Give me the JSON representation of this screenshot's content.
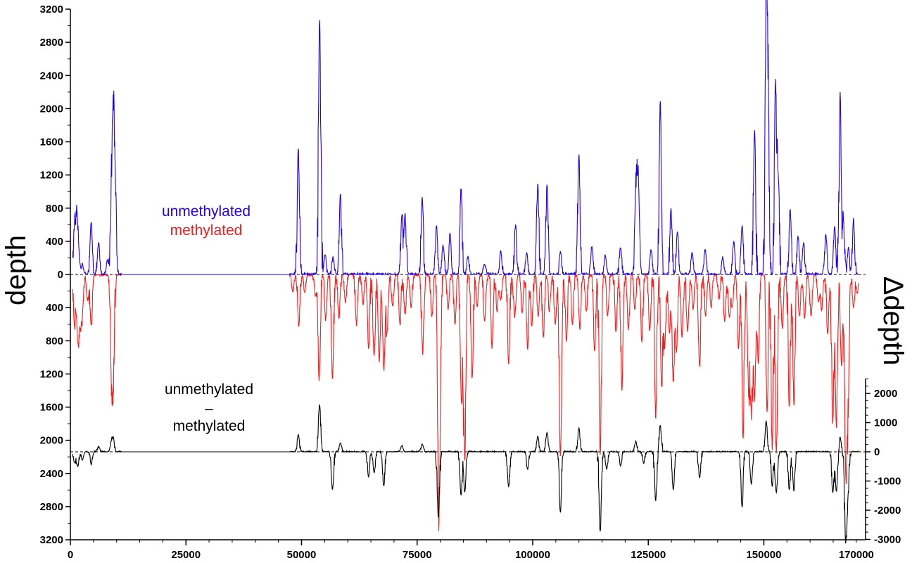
{
  "chart_data": {
    "type": "line",
    "x": {
      "ticks": [
        0,
        25000,
        50000,
        75000,
        100000,
        125000,
        150000,
        170000
      ],
      "tick_labels": [
        "0",
        "25000",
        "50000",
        "75000",
        "100000",
        "125000",
        "150000",
        "170000"
      ],
      "range": [
        0,
        172000
      ]
    },
    "left_axis": {
      "label": "depth",
      "tick_labels": [
        "3200",
        "2800",
        "2400",
        "2000",
        "1600",
        "1200",
        "800",
        "400",
        "0",
        "400",
        "800",
        "1200",
        "1600",
        "2000",
        "2400",
        "2800",
        "3200"
      ],
      "range": [
        -3200,
        3200
      ]
    },
    "right_axis": {
      "label": "Δdepth",
      "tick_values": [
        2000,
        1000,
        0,
        -1000,
        -2000,
        -3000
      ],
      "tick_labels": [
        "2000",
        "1000",
        "0",
        "-1000",
        "-2000",
        "-3000"
      ],
      "range": [
        -3000,
        2500
      ]
    },
    "legend_top": [
      "unmethylated",
      "methylated"
    ],
    "legend_bottom": [
      "unmethylated",
      "–",
      "methylated"
    ],
    "colors": {
      "unmethylated": "#2200ee",
      "methylated": "#ff1a1a",
      "difference": "#000000"
    },
    "series": [
      {
        "name": "unmethylated",
        "baseline": 0,
        "noise": 30,
        "peaks": [
          [
            900,
            550
          ],
          [
            1400,
            640
          ],
          [
            1800,
            200
          ],
          [
            2600,
            120
          ],
          [
            4500,
            630
          ],
          [
            6100,
            380
          ],
          [
            8000,
            170
          ],
          [
            8900,
            880
          ],
          [
            9300,
            1690
          ],
          [
            9700,
            900
          ],
          [
            49300,
            1520
          ],
          [
            53900,
            3080
          ],
          [
            55100,
            240
          ],
          [
            56800,
            200
          ],
          [
            58400,
            960
          ],
          [
            71700,
            700
          ],
          [
            72400,
            720
          ],
          [
            76100,
            930
          ],
          [
            79200,
            590
          ],
          [
            80600,
            360
          ],
          [
            82100,
            500
          ],
          [
            84500,
            1040
          ],
          [
            86000,
            210
          ],
          [
            89600,
            120
          ],
          [
            93100,
            280
          ],
          [
            96300,
            600
          ],
          [
            98700,
            260
          ],
          [
            101100,
            1100
          ],
          [
            103100,
            1080
          ],
          [
            106000,
            280
          ],
          [
            110000,
            1450
          ],
          [
            112800,
            330
          ],
          [
            115700,
            230
          ],
          [
            119000,
            330
          ],
          [
            122300,
            940
          ],
          [
            122800,
            1150
          ],
          [
            125600,
            300
          ],
          [
            127600,
            2080
          ],
          [
            129900,
            800
          ],
          [
            131300,
            520
          ],
          [
            134500,
            260
          ],
          [
            137300,
            300
          ],
          [
            141100,
            200
          ],
          [
            143500,
            390
          ],
          [
            145300,
            580
          ],
          [
            148000,
            1740
          ],
          [
            150500,
            3180
          ],
          [
            150900,
            1900
          ],
          [
            152500,
            2300
          ],
          [
            153100,
            1200
          ],
          [
            155700,
            780
          ],
          [
            157400,
            460
          ],
          [
            158600,
            380
          ],
          [
            163400,
            480
          ],
          [
            165300,
            580
          ],
          [
            166500,
            2140
          ],
          [
            167200,
            650
          ],
          [
            168300,
            320
          ],
          [
            169400,
            660
          ]
        ]
      },
      {
        "name": "methylated",
        "baseline": 0,
        "noise": 30,
        "peaks": [
          [
            900,
            620
          ],
          [
            1600,
            760
          ],
          [
            2100,
            540
          ],
          [
            2600,
            440
          ],
          [
            3700,
            300
          ],
          [
            4500,
            620
          ],
          [
            8900,
            1100
          ],
          [
            9300,
            1100
          ],
          [
            48100,
            200
          ],
          [
            49400,
            620
          ],
          [
            50700,
            220
          ],
          [
            53000,
            260
          ],
          [
            53800,
            1270
          ],
          [
            55200,
            550
          ],
          [
            56700,
            1270
          ],
          [
            58100,
            530
          ],
          [
            59500,
            330
          ],
          [
            61900,
            600
          ],
          [
            63300,
            350
          ],
          [
            64500,
            900
          ],
          [
            65700,
            980
          ],
          [
            66800,
            1040
          ],
          [
            67800,
            1140
          ],
          [
            68500,
            690
          ],
          [
            69700,
            380
          ],
          [
            71300,
            600
          ],
          [
            72400,
            480
          ],
          [
            73700,
            400
          ],
          [
            76200,
            960
          ],
          [
            78200,
            500
          ],
          [
            79600,
            2160
          ],
          [
            79900,
            1400
          ],
          [
            81700,
            420
          ],
          [
            83200,
            600
          ],
          [
            84600,
            1530
          ],
          [
            85300,
            2240
          ],
          [
            86900,
            1250
          ],
          [
            88000,
            380
          ],
          [
            89600,
            560
          ],
          [
            91200,
            900
          ],
          [
            92300,
            450
          ],
          [
            93100,
            300
          ],
          [
            94800,
            1080
          ],
          [
            96100,
            520
          ],
          [
            97700,
            460
          ],
          [
            98900,
            900
          ],
          [
            99800,
            620
          ],
          [
            101200,
            500
          ],
          [
            102300,
            760
          ],
          [
            103600,
            440
          ],
          [
            104900,
            600
          ],
          [
            106000,
            2200
          ],
          [
            107300,
            800
          ],
          [
            108600,
            600
          ],
          [
            110200,
            660
          ],
          [
            111600,
            440
          ],
          [
            113400,
            920
          ],
          [
            114600,
            2180
          ],
          [
            116200,
            500
          ],
          [
            118000,
            700
          ],
          [
            119300,
            1400
          ],
          [
            120700,
            660
          ],
          [
            122100,
            420
          ],
          [
            123600,
            800
          ],
          [
            125300,
            680
          ],
          [
            126600,
            1730
          ],
          [
            127900,
            1360
          ],
          [
            128600,
            800
          ],
          [
            129600,
            700
          ],
          [
            130400,
            1300
          ],
          [
            131100,
            930
          ],
          [
            132300,
            750
          ],
          [
            133500,
            680
          ],
          [
            134700,
            420
          ],
          [
            136100,
            1100
          ],
          [
            137400,
            500
          ],
          [
            138600,
            400
          ],
          [
            140300,
            300
          ],
          [
            141500,
            560
          ],
          [
            142500,
            500
          ],
          [
            143200,
            380
          ],
          [
            144500,
            900
          ],
          [
            145500,
            1980
          ],
          [
            146700,
            1370
          ],
          [
            147300,
            1600
          ],
          [
            148000,
            1480
          ],
          [
            148800,
            1070
          ],
          [
            150700,
            1670
          ],
          [
            151800,
            2100
          ],
          [
            152700,
            2160
          ],
          [
            154000,
            640
          ],
          [
            155500,
            1600
          ],
          [
            156500,
            1560
          ],
          [
            157700,
            500
          ],
          [
            158800,
            520
          ],
          [
            160200,
            500
          ],
          [
            161800,
            320
          ],
          [
            162500,
            420
          ],
          [
            163800,
            720
          ],
          [
            164900,
            1800
          ],
          [
            165700,
            1850
          ],
          [
            166800,
            1100
          ],
          [
            167700,
            2260
          ],
          [
            168200,
            1450
          ],
          [
            169400,
            400
          ],
          [
            170200,
            220
          ]
        ]
      },
      {
        "name": "difference",
        "baseline": 0,
        "noise": 40,
        "peaks": [
          [
            900,
            -380
          ],
          [
            1600,
            -520
          ],
          [
            2600,
            -300
          ],
          [
            4500,
            -440
          ],
          [
            6100,
            160
          ],
          [
            8900,
            330
          ],
          [
            9300,
            380
          ],
          [
            49300,
            570
          ],
          [
            53900,
            1600
          ],
          [
            56700,
            -1290
          ],
          [
            58400,
            300
          ],
          [
            64500,
            -860
          ],
          [
            65700,
            -720
          ],
          [
            67800,
            -1180
          ],
          [
            71700,
            200
          ],
          [
            76100,
            250
          ],
          [
            79600,
            -2250
          ],
          [
            84500,
            -1500
          ],
          [
            85300,
            -1380
          ],
          [
            94800,
            -1200
          ],
          [
            98900,
            -600
          ],
          [
            101100,
            540
          ],
          [
            103100,
            650
          ],
          [
            106000,
            -2100
          ],
          [
            110000,
            800
          ],
          [
            114600,
            -2750
          ],
          [
            116000,
            -600
          ],
          [
            119000,
            -500
          ],
          [
            122300,
            350
          ],
          [
            124000,
            -400
          ],
          [
            126600,
            -1700
          ],
          [
            127600,
            900
          ],
          [
            130400,
            -1300
          ],
          [
            136100,
            -900
          ],
          [
            145300,
            -1900
          ],
          [
            147300,
            -1100
          ],
          [
            150500,
            1050
          ],
          [
            151800,
            -1200
          ],
          [
            152700,
            -1400
          ],
          [
            155500,
            -1300
          ],
          [
            156500,
            -1350
          ],
          [
            164900,
            -1400
          ],
          [
            165700,
            -1350
          ],
          [
            166500,
            500
          ],
          [
            167700,
            -3020
          ],
          [
            168200,
            -1300
          ]
        ]
      }
    ]
  }
}
